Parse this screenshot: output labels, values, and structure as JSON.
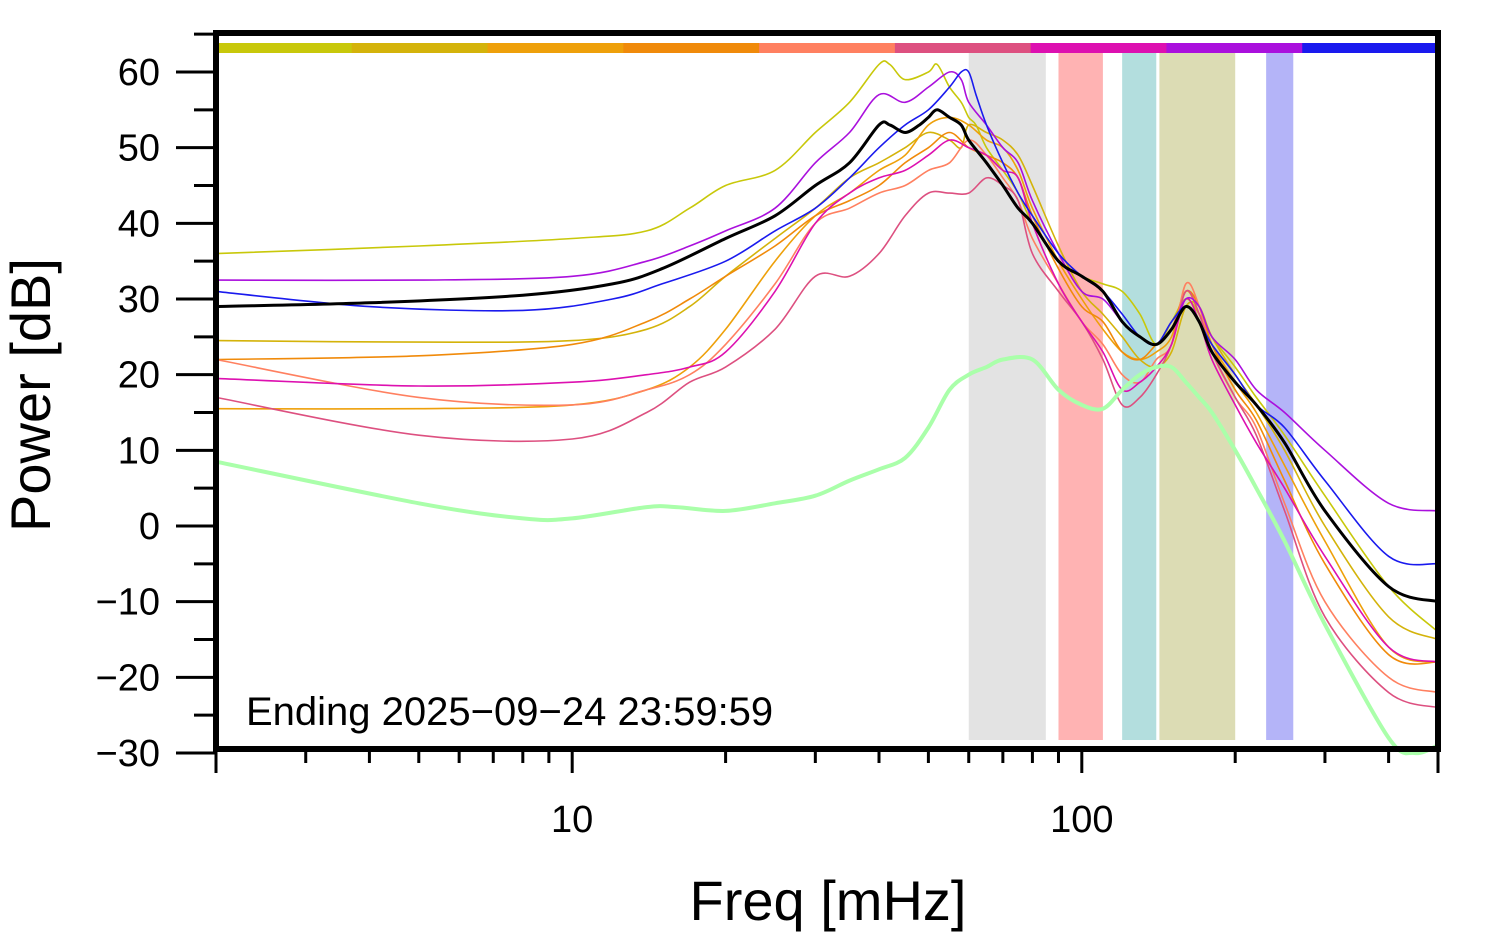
{
  "chart_data": {
    "type": "line",
    "xlabel": "Freq [mHz]",
    "ylabel": "Power [dB]",
    "annotation": "Ending 2025−09−24 23:59:59",
    "x_scale": "log",
    "xlim": [
      2,
      500
    ],
    "ylim": [
      -30,
      65
    ],
    "x_tick_labels": [
      {
        "value": 10,
        "label": "10"
      },
      {
        "value": 100,
        "label": "100"
      }
    ],
    "y_ticks": [
      60,
      50,
      40,
      30,
      20,
      10,
      0,
      -10,
      -20,
      -30
    ],
    "y_tick_labels": [
      "60",
      "50",
      "40",
      "30",
      "20",
      "10",
      "0",
      "−10",
      "−20",
      "−30"
    ],
    "grid": false,
    "color_bar": [
      "#c8c80a",
      "#d4b30a",
      "#eea00a",
      "#f08a0a",
      "#ff8060",
      "#dd5080",
      "#dd10b0",
      "#aa10dd",
      "#1a1aee"
    ],
    "bands": [
      {
        "x0": 60,
        "x1": 85,
        "color": "#e3e3e3"
      },
      {
        "x0": 90,
        "x1": 110,
        "color": "#ffb3b3"
      },
      {
        "x0": 120,
        "x1": 140,
        "color": "#b3dede"
      },
      {
        "x0": 142,
        "x1": 200,
        "color": "#dcdcb4"
      },
      {
        "x0": 230,
        "x1": 260,
        "color": "#b4b4f8"
      }
    ],
    "series": [
      {
        "color": "#c8c80a",
        "width": 1.6,
        "x": [
          2,
          5,
          10,
          14,
          17,
          20,
          25,
          30,
          35,
          40,
          42,
          45,
          50,
          52,
          55,
          58,
          60,
          62,
          65,
          70,
          75,
          80,
          90,
          100,
          110,
          120,
          130,
          140,
          150,
          160,
          170,
          180,
          200,
          220,
          250,
          300,
          400,
          500
        ],
        "y": [
          36,
          37,
          38,
          39,
          42,
          45,
          47,
          52,
          56,
          61,
          61,
          59,
          60,
          61,
          58,
          56,
          54,
          53,
          50,
          47,
          44,
          40,
          35,
          33,
          32,
          31,
          28,
          24,
          27,
          30,
          28,
          25,
          21,
          17,
          12,
          4,
          -8,
          -14
        ]
      },
      {
        "color": "#d4b30a",
        "width": 1.6,
        "x": [
          2,
          5,
          10,
          14,
          17,
          20,
          25,
          30,
          35,
          40,
          45,
          50,
          55,
          58,
          60,
          65,
          70,
          75,
          80,
          90,
          100,
          110,
          120,
          130,
          140,
          150,
          160,
          170,
          180,
          200,
          220,
          250,
          300,
          400,
          500
        ],
        "y": [
          24.5,
          24.3,
          24.5,
          26,
          29,
          33,
          38,
          42,
          46,
          48,
          50,
          52,
          51,
          50,
          53,
          52,
          51,
          49,
          45,
          37,
          31,
          28,
          25,
          22,
          21,
          23,
          29,
          29,
          25,
          20,
          16,
          10,
          0,
          -12,
          -15
        ]
      },
      {
        "color": "#eea00a",
        "width": 1.6,
        "x": [
          2,
          5,
          10,
          14,
          17,
          20,
          25,
          30,
          35,
          40,
          45,
          50,
          55,
          60,
          65,
          70,
          75,
          80,
          90,
          100,
          110,
          120,
          130,
          140,
          150,
          160,
          170,
          180,
          200,
          220,
          250,
          300,
          400,
          500
        ],
        "y": [
          15.5,
          15.5,
          16,
          18,
          21,
          26,
          35,
          41,
          44,
          47,
          49,
          53,
          54,
          53,
          51,
          50,
          47,
          42,
          35,
          30,
          26,
          23,
          22,
          23,
          25,
          31,
          28,
          24,
          19,
          15,
          8,
          -2,
          -16,
          -18
        ]
      },
      {
        "color": "#f08a0a",
        "width": 1.6,
        "x": [
          2,
          5,
          10,
          14,
          17,
          20,
          25,
          30,
          35,
          40,
          45,
          50,
          55,
          60,
          65,
          70,
          75,
          80,
          90,
          100,
          110,
          120,
          130,
          140,
          150,
          160,
          170,
          180,
          200,
          220,
          250,
          300,
          400,
          500
        ],
        "y": [
          22,
          22.5,
          24,
          27,
          30,
          33,
          37,
          41,
          43,
          45,
          48,
          50,
          52,
          50,
          49,
          48,
          46,
          41,
          34,
          29,
          27,
          23,
          22,
          24,
          26,
          31,
          29,
          24,
          18,
          14,
          6,
          -5,
          -17,
          -18
        ]
      },
      {
        "color": "#ff8060",
        "width": 1.6,
        "x": [
          2,
          5,
          10,
          14,
          17,
          20,
          25,
          30,
          35,
          40,
          45,
          50,
          55,
          60,
          65,
          70,
          75,
          80,
          90,
          100,
          110,
          120,
          130,
          140,
          150,
          160,
          170,
          180,
          200,
          220,
          250,
          300,
          400,
          500
        ],
        "y": [
          22,
          17,
          16,
          18,
          20,
          24,
          32,
          40,
          42,
          44,
          45,
          47,
          48,
          51,
          49,
          46,
          43,
          38,
          32,
          27,
          24,
          20,
          19,
          22,
          24,
          32,
          29,
          23,
          17,
          13,
          3,
          -10,
          -20,
          -22
        ]
      },
      {
        "color": "#dd5080",
        "width": 1.6,
        "x": [
          2,
          5,
          10,
          14,
          17,
          20,
          25,
          30,
          35,
          40,
          45,
          50,
          55,
          60,
          65,
          70,
          75,
          80,
          90,
          100,
          110,
          120,
          130,
          140,
          150,
          160,
          170,
          180,
          200,
          220,
          250,
          300,
          400,
          500
        ],
        "y": [
          17,
          12,
          11.5,
          15,
          19,
          21,
          26,
          33,
          33,
          36,
          41,
          44,
          44,
          44,
          46,
          45,
          43,
          36,
          31,
          27,
          22,
          16,
          17,
          20,
          24,
          31,
          28,
          23,
          17,
          12,
          2,
          -12,
          -22,
          -24
        ]
      },
      {
        "color": "#dd10b0",
        "width": 1.6,
        "x": [
          2,
          5,
          10,
          14,
          17,
          20,
          25,
          30,
          35,
          40,
          45,
          50,
          55,
          60,
          65,
          70,
          75,
          80,
          90,
          100,
          110,
          120,
          130,
          140,
          150,
          160,
          170,
          180,
          200,
          220,
          250,
          300,
          400,
          500
        ],
        "y": [
          19.5,
          18.5,
          19,
          20,
          21,
          23,
          31,
          40,
          44,
          46,
          47,
          49,
          51,
          50,
          49,
          47,
          46,
          40,
          32,
          27,
          23,
          18,
          19,
          21,
          24,
          30,
          27,
          22,
          16,
          11,
          5,
          -4,
          -16,
          -18
        ]
      },
      {
        "color": "#aa10dd",
        "width": 1.6,
        "x": [
          2,
          5,
          10,
          14,
          17,
          20,
          25,
          30,
          35,
          40,
          45,
          50,
          55,
          58,
          60,
          65,
          70,
          75,
          80,
          90,
          100,
          110,
          120,
          130,
          140,
          150,
          160,
          170,
          180,
          200,
          220,
          250,
          300,
          400,
          500
        ],
        "y": [
          32.5,
          32.5,
          33,
          35,
          37,
          39,
          42,
          48,
          52,
          57,
          56,
          58,
          60,
          59,
          56,
          53,
          50,
          48,
          43,
          36,
          31,
          30,
          27,
          25,
          24,
          26,
          30,
          29,
          25,
          22,
          18,
          15,
          10,
          3,
          2
        ]
      },
      {
        "color": "#1a1aee",
        "width": 1.6,
        "x": [
          2,
          4,
          8,
          12,
          15,
          20,
          25,
          30,
          35,
          40,
          45,
          50,
          55,
          58,
          60,
          62,
          65,
          70,
          75,
          80,
          90,
          100,
          110,
          120,
          130,
          140,
          150,
          160,
          170,
          180,
          200,
          220,
          250,
          300,
          400,
          500
        ],
        "y": [
          31,
          29,
          28.5,
          30,
          32,
          35,
          39,
          42,
          46,
          50,
          53,
          55,
          58,
          60,
          60,
          57,
          53,
          48,
          44,
          41,
          36,
          33,
          31,
          28,
          25,
          24,
          27,
          29,
          27,
          24,
          20,
          16,
          13,
          6,
          -4,
          -5
        ]
      },
      {
        "color": "#000000",
        "width": 3,
        "x": [
          2,
          4,
          8,
          12,
          15,
          20,
          25,
          30,
          35,
          40,
          42,
          45,
          48,
          50,
          52,
          55,
          58,
          60,
          65,
          70,
          75,
          80,
          90,
          100,
          110,
          120,
          130,
          140,
          150,
          160,
          170,
          180,
          200,
          220,
          250,
          300,
          400,
          500
        ],
        "y": [
          29,
          29.5,
          30.5,
          32,
          34,
          38,
          41,
          45,
          48,
          53,
          53,
          52,
          53,
          54,
          55,
          54,
          53,
          51,
          48,
          45,
          42,
          40,
          35,
          33,
          31,
          27,
          25,
          24,
          26,
          29,
          27,
          23,
          19,
          16,
          11,
          2,
          -8,
          -10
        ]
      },
      {
        "color": "#aaffaa",
        "width": 4,
        "x": [
          2,
          5,
          8,
          10,
          14,
          16,
          20,
          25,
          30,
          35,
          40,
          45,
          50,
          55,
          60,
          65,
          70,
          80,
          90,
          100,
          110,
          120,
          130,
          140,
          150,
          160,
          170,
          180,
          200,
          220,
          250,
          300,
          400,
          450,
          500
        ],
        "y": [
          8.5,
          3,
          1,
          1,
          2.5,
          2.5,
          2,
          3,
          4,
          6,
          7.5,
          9,
          13,
          18,
          20,
          21,
          22,
          22,
          18,
          16,
          15.5,
          18,
          20,
          21,
          21,
          19,
          17,
          15,
          10,
          5,
          -2,
          -13,
          -28,
          -30,
          -29
        ]
      }
    ]
  }
}
